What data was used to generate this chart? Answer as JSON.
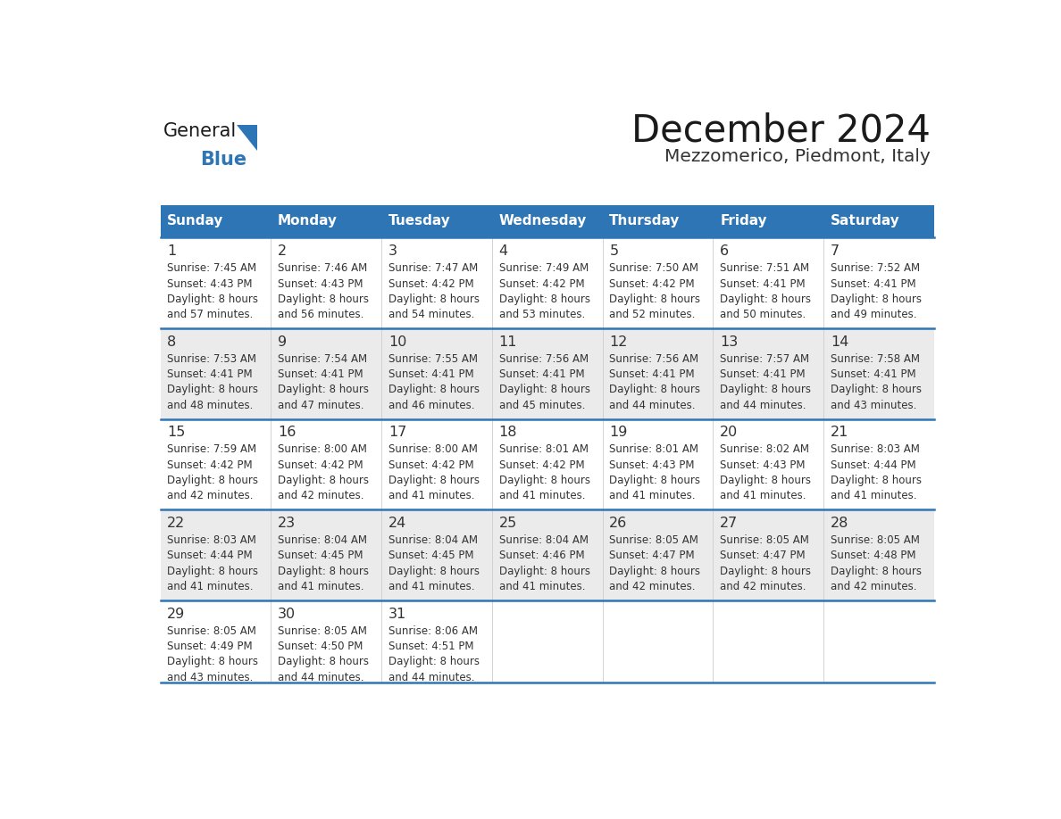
{
  "title": "December 2024",
  "subtitle": "Mezzomerico, Piedmont, Italy",
  "days_of_week": [
    "Sunday",
    "Monday",
    "Tuesday",
    "Wednesday",
    "Thursday",
    "Friday",
    "Saturday"
  ],
  "header_bg": "#2E75B6",
  "header_text": "#FFFFFF",
  "cell_bg_odd": "#EBEBEB",
  "cell_bg_even": "#FFFFFF",
  "border_color": "#2E75B6",
  "day_num_color": "#333333",
  "info_text_color": "#333333",
  "title_color": "#1a1a1a",
  "subtitle_color": "#333333",
  "logo_general_color": "#1a1a1a",
  "logo_blue_color": "#2E75B6",
  "logo_triangle_color": "#2E75B6",
  "calendar_data": [
    [
      {
        "day": "1",
        "sunrise": "7:45 AM",
        "sunset": "4:43 PM",
        "daylight_min": "57"
      },
      {
        "day": "2",
        "sunrise": "7:46 AM",
        "sunset": "4:43 PM",
        "daylight_min": "56"
      },
      {
        "day": "3",
        "sunrise": "7:47 AM",
        "sunset": "4:42 PM",
        "daylight_min": "54"
      },
      {
        "day": "4",
        "sunrise": "7:49 AM",
        "sunset": "4:42 PM",
        "daylight_min": "53"
      },
      {
        "day": "5",
        "sunrise": "7:50 AM",
        "sunset": "4:42 PM",
        "daylight_min": "52"
      },
      {
        "day": "6",
        "sunrise": "7:51 AM",
        "sunset": "4:41 PM",
        "daylight_min": "50"
      },
      {
        "day": "7",
        "sunrise": "7:52 AM",
        "sunset": "4:41 PM",
        "daylight_min": "49"
      }
    ],
    [
      {
        "day": "8",
        "sunrise": "7:53 AM",
        "sunset": "4:41 PM",
        "daylight_min": "48"
      },
      {
        "day": "9",
        "sunrise": "7:54 AM",
        "sunset": "4:41 PM",
        "daylight_min": "47"
      },
      {
        "day": "10",
        "sunrise": "7:55 AM",
        "sunset": "4:41 PM",
        "daylight_min": "46"
      },
      {
        "day": "11",
        "sunrise": "7:56 AM",
        "sunset": "4:41 PM",
        "daylight_min": "45"
      },
      {
        "day": "12",
        "sunrise": "7:56 AM",
        "sunset": "4:41 PM",
        "daylight_min": "44"
      },
      {
        "day": "13",
        "sunrise": "7:57 AM",
        "sunset": "4:41 PM",
        "daylight_min": "44"
      },
      {
        "day": "14",
        "sunrise": "7:58 AM",
        "sunset": "4:41 PM",
        "daylight_min": "43"
      }
    ],
    [
      {
        "day": "15",
        "sunrise": "7:59 AM",
        "sunset": "4:42 PM",
        "daylight_min": "42"
      },
      {
        "day": "16",
        "sunrise": "8:00 AM",
        "sunset": "4:42 PM",
        "daylight_min": "42"
      },
      {
        "day": "17",
        "sunrise": "8:00 AM",
        "sunset": "4:42 PM",
        "daylight_min": "41"
      },
      {
        "day": "18",
        "sunrise": "8:01 AM",
        "sunset": "4:42 PM",
        "daylight_min": "41"
      },
      {
        "day": "19",
        "sunrise": "8:01 AM",
        "sunset": "4:43 PM",
        "daylight_min": "41"
      },
      {
        "day": "20",
        "sunrise": "8:02 AM",
        "sunset": "4:43 PM",
        "daylight_min": "41"
      },
      {
        "day": "21",
        "sunrise": "8:03 AM",
        "sunset": "4:44 PM",
        "daylight_min": "41"
      }
    ],
    [
      {
        "day": "22",
        "sunrise": "8:03 AM",
        "sunset": "4:44 PM",
        "daylight_min": "41"
      },
      {
        "day": "23",
        "sunrise": "8:04 AM",
        "sunset": "4:45 PM",
        "daylight_min": "41"
      },
      {
        "day": "24",
        "sunrise": "8:04 AM",
        "sunset": "4:45 PM",
        "daylight_min": "41"
      },
      {
        "day": "25",
        "sunrise": "8:04 AM",
        "sunset": "4:46 PM",
        "daylight_min": "41"
      },
      {
        "day": "26",
        "sunrise": "8:05 AM",
        "sunset": "4:47 PM",
        "daylight_min": "42"
      },
      {
        "day": "27",
        "sunrise": "8:05 AM",
        "sunset": "4:47 PM",
        "daylight_min": "42"
      },
      {
        "day": "28",
        "sunrise": "8:05 AM",
        "sunset": "4:48 PM",
        "daylight_min": "42"
      }
    ],
    [
      {
        "day": "29",
        "sunrise": "8:05 AM",
        "sunset": "4:49 PM",
        "daylight_min": "43"
      },
      {
        "day": "30",
        "sunrise": "8:05 AM",
        "sunset": "4:50 PM",
        "daylight_min": "44"
      },
      {
        "day": "31",
        "sunrise": "8:06 AM",
        "sunset": "4:51 PM",
        "daylight_min": "44"
      },
      null,
      null,
      null,
      null
    ]
  ]
}
